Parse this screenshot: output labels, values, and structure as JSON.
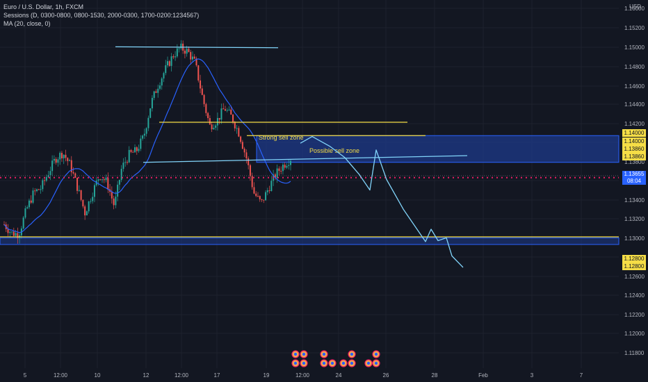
{
  "legend": {
    "title": "Euro / U.S. Dollar, 1h, FXCM",
    "sessions": "Sessions (D, 0300-0800, 0800-1530, 2000-0300, 1700-0200:1234567)",
    "ma": "MA (20, close, 0)"
  },
  "usd_label": "USD",
  "price_tags": {
    "current_price": "1.13655",
    "countdown": "08:04",
    "zone_a": "1.14000",
    "zone_b": "1.14000",
    "zone_c": "1.13860",
    "zone_d": "1.13860",
    "support_a": "1.12800",
    "support_b": "1.12800"
  },
  "annotations": {
    "strong_sell": "Strong sell zone",
    "possible_sell": "Possible sell zone"
  },
  "colors": {
    "background": "#131722",
    "grid": "#1e222d",
    "candle_up": "#26a69a",
    "candle_down": "#ef5350",
    "ma": "#2962ff",
    "drawing": "#81d4fa",
    "zone_line": "#f5dd46",
    "dotted": "#e91e63",
    "zone_fill": "#1e3a8a"
  },
  "chart_data": {
    "type": "candlestick",
    "instrument": "Euro / U.S. Dollar, 1h, FXCM",
    "y_axis": {
      "ticks": [
        "1.16000",
        "1.15200",
        "1.15000",
        "1.14800",
        "1.14600",
        "1.14400",
        "1.14200",
        "1.14000",
        "1.13800",
        "1.13600",
        "1.13400",
        "1.13200",
        "1.13000",
        "1.12800",
        "1.12600",
        "1.12400",
        "1.12200",
        "1.12000",
        "1.11800"
      ],
      "range": [
        1.117,
        1.16
      ]
    },
    "x_axis": {
      "ticks": [
        "5",
        "12:00",
        "10",
        "12",
        "12:00",
        "17",
        "19",
        "12:00",
        "24",
        "26",
        "28",
        "Feb",
        "3",
        "7"
      ]
    },
    "price_path": [
      1.1293,
      1.1284,
      1.1283,
      1.1308,
      1.1326,
      1.1331,
      1.1347,
      1.1362,
      1.1368,
      1.1355,
      1.1331,
      1.1305,
      1.1326,
      1.1345,
      1.1337,
      1.1312,
      1.1352,
      1.1366,
      1.137,
      1.1385,
      1.142,
      1.144,
      1.1456,
      1.147,
      1.1478,
      1.1474,
      1.1462,
      1.1426,
      1.1396,
      1.1402,
      1.1415,
      1.1405,
      1.1388,
      1.1362,
      1.1326,
      1.1315,
      1.1331,
      1.1346,
      1.1355,
      1.1362
    ],
    "horizontal_levels": [
      1.1479,
      1.14,
      1.1386,
      1.138,
      1.1365,
      1.1358,
      1.1342,
      1.128,
      1.1272
    ],
    "projection": [
      1.1378,
      1.1385,
      1.1375,
      1.1363,
      1.1345,
      1.1329,
      1.1371,
      1.134,
      1.1309,
      1.1275,
      1.1288,
      1.1276,
      1.1279,
      1.126,
      1.1248
    ]
  }
}
